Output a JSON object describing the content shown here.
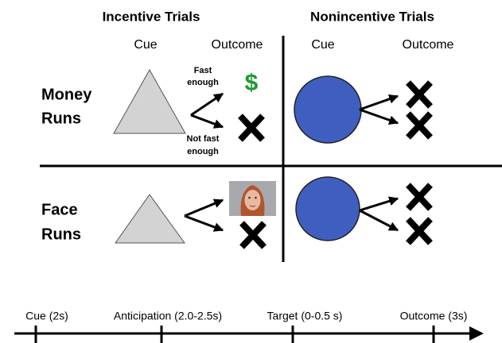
{
  "columns": [
    {
      "title": "Incentive Trials",
      "cue": "Cue",
      "outcome": "Outcome"
    },
    {
      "title": "Nonincentive Trials",
      "cue": "Cue",
      "outcome": "Outcome"
    }
  ],
  "rows": [
    {
      "label": [
        "Money",
        "Runs"
      ]
    },
    {
      "label": [
        "Face",
        "Runs"
      ]
    }
  ],
  "feedback": {
    "hit": [
      "Fast",
      "enough"
    ],
    "miss": [
      "Not fast",
      "enough"
    ],
    "money_symbol": "$"
  },
  "timeline": [
    "Cue (2s)",
    "Anticipation (2.0-2.5s)",
    "Target (0-0.5 s)",
    "Outcome (3s)"
  ]
}
